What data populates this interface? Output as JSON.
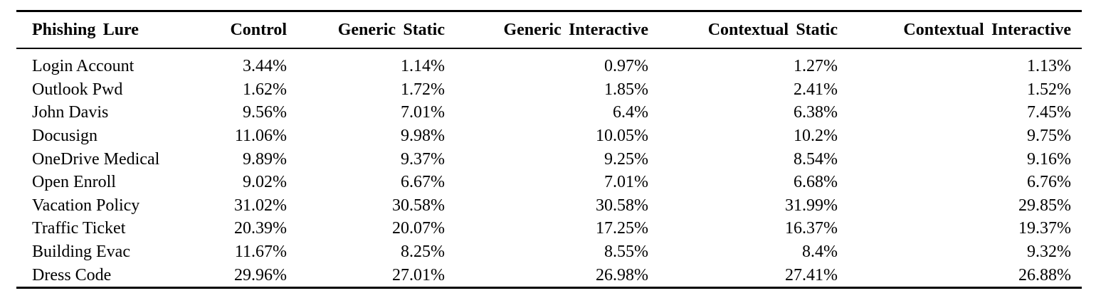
{
  "colors": {
    "background": "#ffffff",
    "text": "#000000",
    "rule": "#000000"
  },
  "table": {
    "columns": [
      "Phishing Lure",
      "Control",
      "Generic Static",
      "Generic Interactive",
      "Contextual Static",
      "Contextual Interactive"
    ],
    "rows": [
      {
        "lure": "Login Account",
        "values": [
          "3.44%",
          "1.14%",
          "0.97%",
          "1.27%",
          "1.13%"
        ]
      },
      {
        "lure": "Outlook Pwd",
        "values": [
          "1.62%",
          "1.72%",
          "1.85%",
          "2.41%",
          "1.52%"
        ]
      },
      {
        "lure": "John Davis",
        "values": [
          "9.56%",
          "7.01%",
          "6.4%",
          "6.38%",
          "7.45%"
        ]
      },
      {
        "lure": "Docusign",
        "values": [
          "11.06%",
          "9.98%",
          "10.05%",
          "10.2%",
          "9.75%"
        ]
      },
      {
        "lure": "OneDrive Medical",
        "values": [
          "9.89%",
          "9.37%",
          "9.25%",
          "8.54%",
          "9.16%"
        ]
      },
      {
        "lure": "Open Enroll",
        "values": [
          "9.02%",
          "6.67%",
          "7.01%",
          "6.68%",
          "6.76%"
        ]
      },
      {
        "lure": "Vacation Policy",
        "values": [
          "31.02%",
          "30.58%",
          "30.58%",
          "31.99%",
          "29.85%"
        ]
      },
      {
        "lure": "Traffic Ticket",
        "values": [
          "20.39%",
          "20.07%",
          "17.25%",
          "16.37%",
          "19.37%"
        ]
      },
      {
        "lure": "Building Evac",
        "values": [
          "11.67%",
          "8.25%",
          "8.55%",
          "8.4%",
          "9.32%"
        ]
      },
      {
        "lure": "Dress Code",
        "values": [
          "29.96%",
          "27.01%",
          "26.98%",
          "27.41%",
          "26.88%"
        ]
      }
    ]
  }
}
